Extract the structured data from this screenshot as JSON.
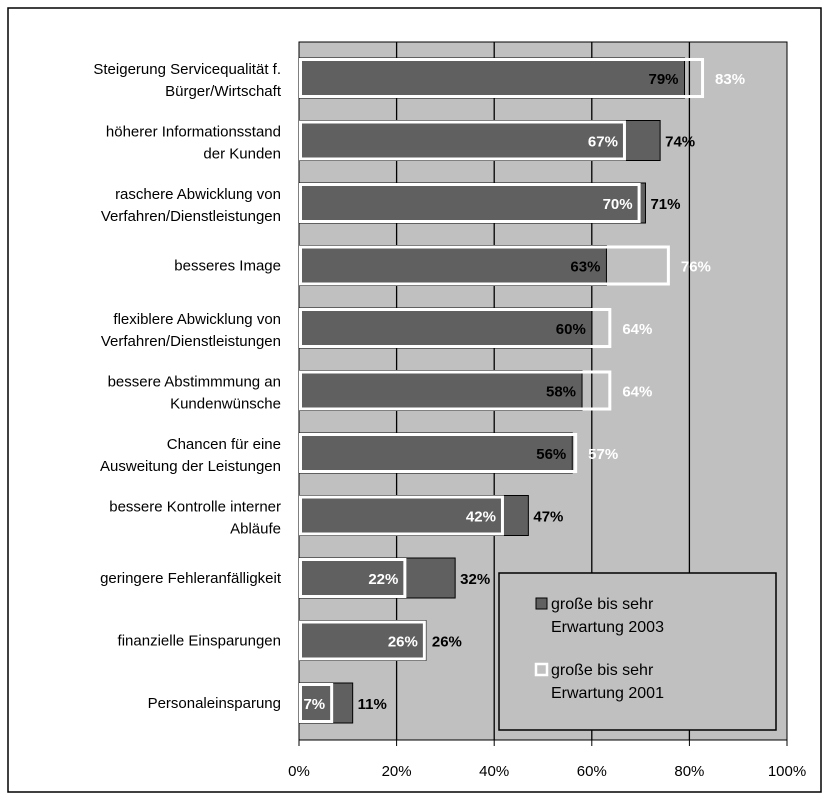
{
  "chart_data": {
    "type": "bar",
    "orientation": "horizontal",
    "categories": [
      [
        "Steigerung Servicequalität f.",
        "Bürger/Wirtschaft"
      ],
      [
        "höherer Informationsstand",
        "der Kunden"
      ],
      [
        "raschere Abwicklung von",
        "Verfahren/Dienstleistungen"
      ],
      [
        "besseres Image"
      ],
      [
        "flexiblere Abwicklung von",
        "Verfahren/Dienstleistungen"
      ],
      [
        "bessere Abstimmmung an",
        "Kundenwünsche"
      ],
      [
        "Chancen für eine",
        "Ausweitung der Leistungen"
      ],
      [
        "bessere Kontrolle interner",
        "Abläufe"
      ],
      [
        "geringere Fehleranfälligkeit"
      ],
      [
        "finanzielle Einsparungen"
      ],
      [
        "Personaleinsparung"
      ]
    ],
    "series": [
      {
        "name": "große bis sehr Erwartung 2003",
        "values": [
          79,
          74,
          71,
          63,
          60,
          58,
          56,
          47,
          32,
          26,
          11
        ],
        "labels": [
          "79%",
          "74%",
          "71%",
          "63%",
          "60%",
          "58%",
          "56%",
          "47%",
          "32%",
          "26%",
          "11%"
        ]
      },
      {
        "name": "große bis sehr Erwartung 2001",
        "values": [
          83,
          67,
          70,
          76,
          64,
          64,
          57,
          42,
          22,
          26,
          7
        ],
        "labels": [
          "83%",
          "67%",
          "70%",
          "76%",
          "64%",
          "64%",
          "57%",
          "42%",
          "22%",
          "26%",
          "7%"
        ]
      }
    ],
    "x_ticks": [
      "0%",
      "20%",
      "40%",
      "60%",
      "80%",
      "100%"
    ],
    "xlim": [
      0,
      100
    ],
    "grid": "vertical",
    "legend": {
      "placement": "bottom-right",
      "entries": [
        {
          "line1": "große bis sehr",
          "line2": "Erwartung 2003"
        },
        {
          "line1": "große bis sehr",
          "line2": "Erwartung 2001"
        }
      ]
    },
    "colors": {
      "plot_bg": "#c0c0c0",
      "bar_2003": "#606060",
      "bar_2001_outline": "#ffffff",
      "grid": "#000000",
      "label_dark": "#000000",
      "label_light": "#ffffff"
    }
  }
}
